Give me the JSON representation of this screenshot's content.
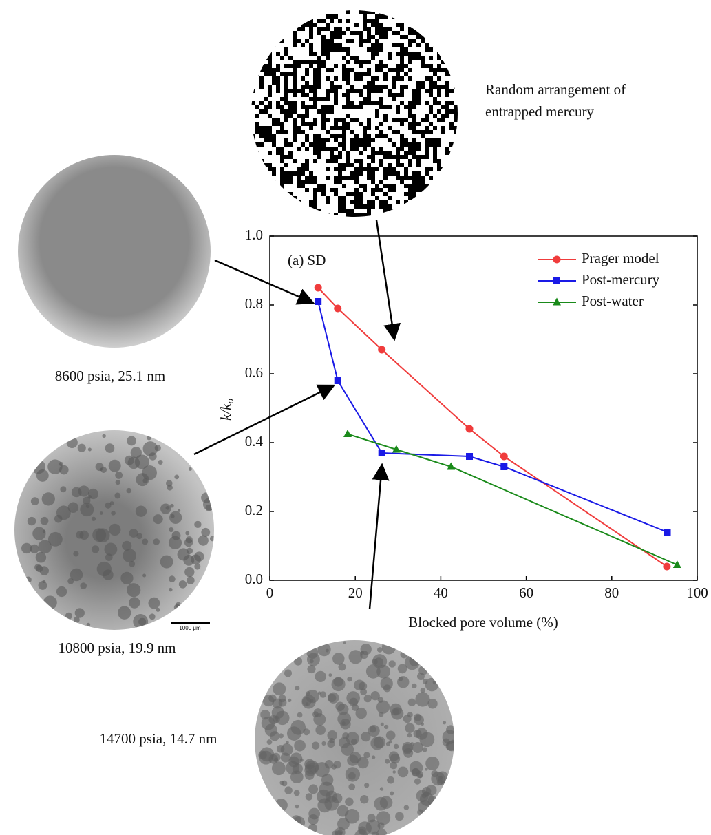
{
  "chart_data": {
    "type": "line",
    "annotations": [
      "(a) SD",
      "Random arrangement of",
      "entrapped mercury",
      "8600 psia, 25.1 nm",
      "10800 psia, 19.9 nm",
      "14700 psia, 14.7 nm",
      "1000 μm"
    ],
    "xlabel": "Blocked pore volume (%)",
    "ylabel": [
      "k/k",
      "o"
    ],
    "xlim": [
      0,
      100
    ],
    "xticks": [
      0,
      20,
      40,
      60,
      80,
      100
    ],
    "ylim": [
      0,
      1
    ],
    "yticks": [
      {
        "value": 0,
        "label": "0.0"
      },
      {
        "value": 0.2,
        "label": "0.2"
      },
      {
        "value": 0.4,
        "label": "0.4"
      },
      {
        "value": 0.6,
        "label": "0.6"
      },
      {
        "value": 0.8,
        "label": "0.8"
      },
      {
        "value": 1,
        "label": "1.0"
      }
    ],
    "legend": "upper right",
    "series": [
      {
        "name": "Prager model",
        "color": "#f03c3c",
        "marker": "circle",
        "x": [
          11.3,
          15.9,
          26.2,
          46.7,
          54.8,
          92.9
        ],
        "values": [
          0.85,
          0.79,
          0.67,
          0.44,
          0.36,
          0.04
        ]
      },
      {
        "name": "Post-mercury",
        "color": "#1a1ae6",
        "marker": "square",
        "x": [
          11.3,
          15.9,
          26.2,
          46.7,
          54.8,
          93.0
        ],
        "values": [
          0.81,
          0.58,
          0.37,
          0.36,
          0.33,
          0.14
        ]
      },
      {
        "name": "Post-water",
        "color": "#1a8a1a",
        "marker": "triangle",
        "x": [
          18.2,
          29.6,
          42.4,
          95.3
        ],
        "values": [
          0.425,
          0.38,
          0.33,
          0.045
        ]
      }
    ]
  }
}
